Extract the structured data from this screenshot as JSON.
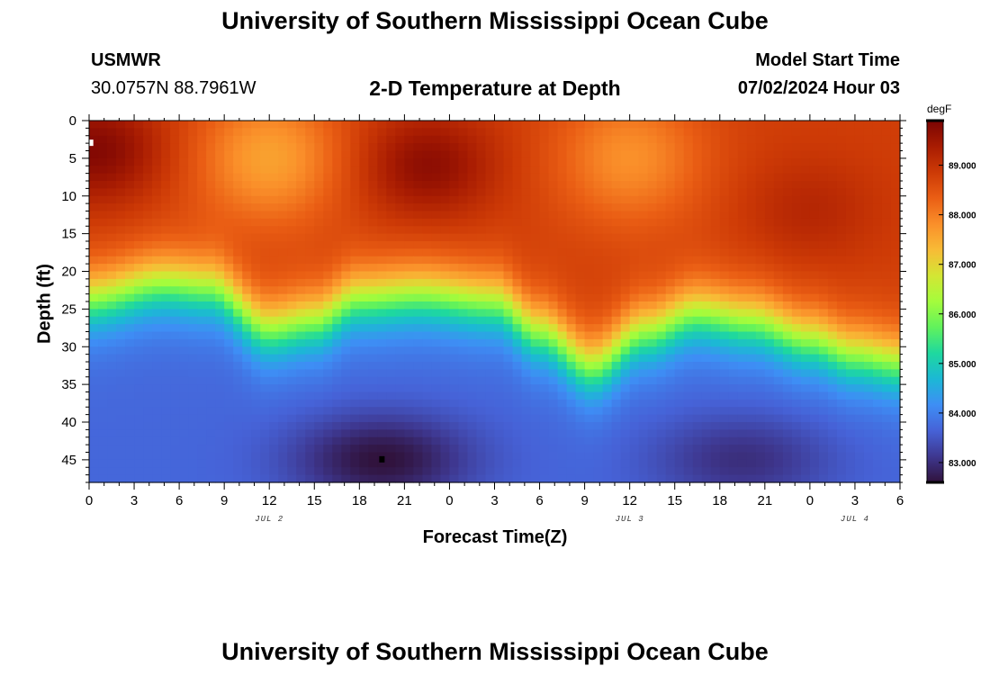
{
  "header": {
    "title_top": "University of Southern Mississippi Ocean Cube",
    "station": "USMWR",
    "coords": "30.0757N  88.7961W",
    "subtitle": "2-D Temperature at Depth",
    "model_start_label": "Model Start Time",
    "model_start_value": "07/02/2024 Hour 03",
    "title_bottom": "University of Southern Mississippi Ocean Cube"
  },
  "chart_data": {
    "type": "heatmap",
    "title": "2-D Temperature at Depth",
    "xlabel": "Forecast Time(Z)",
    "ylabel": "Depth (ft)",
    "x_range_hours": [
      0,
      54
    ],
    "y_range_ft": [
      0,
      48
    ],
    "x_tick_labels": [
      "0",
      "3",
      "6",
      "9",
      "12",
      "15",
      "18",
      "21",
      "0",
      "3",
      "6",
      "9",
      "12",
      "15",
      "18",
      "21",
      "0",
      "3",
      "6"
    ],
    "y_tick_labels": [
      "0",
      "5",
      "10",
      "15",
      "20",
      "25",
      "30",
      "35",
      "40",
      "45"
    ],
    "date_labels": [
      {
        "label": "JUL 2",
        "hour": 12
      },
      {
        "label": "JUL 3",
        "hour": 36
      },
      {
        "label": "JUL 4",
        "hour": 51
      }
    ],
    "colorbar": {
      "units": "degF",
      "min": 82.6,
      "max": 89.9,
      "ticks": [
        "83.000",
        "84.000",
        "85.000",
        "86.000",
        "87.000",
        "88.000",
        "89.000"
      ]
    },
    "thermocline_depth_ft": [
      {
        "hour": 0,
        "depth": 23.5
      },
      {
        "hour": 5,
        "depth": 21.5
      },
      {
        "hour": 8,
        "depth": 22
      },
      {
        "hour": 12,
        "depth": 27.5
      },
      {
        "hour": 15,
        "depth": 26.5
      },
      {
        "hour": 18,
        "depth": 23.5
      },
      {
        "hour": 22,
        "depth": 23
      },
      {
        "hour": 27,
        "depth": 24
      },
      {
        "hour": 30,
        "depth": 28
      },
      {
        "hour": 33.5,
        "depth": 32.5
      },
      {
        "hour": 37,
        "depth": 28
      },
      {
        "hour": 40.5,
        "depth": 25.5
      },
      {
        "hour": 44,
        "depth": 26.5
      },
      {
        "hour": 48,
        "depth": 29
      },
      {
        "hour": 51,
        "depth": 31
      },
      {
        "hour": 54,
        "depth": 32
      }
    ],
    "warm_spots": [
      {
        "hour": 0.5,
        "depth": 4,
        "value": 89.8
      },
      {
        "hour": 22.5,
        "depth": 6,
        "value": 89.7
      },
      {
        "hour": 48,
        "depth": 12,
        "value": 89.2
      }
    ],
    "cool_surface_spots": [
      {
        "hour": 12,
        "depth": 5,
        "value": 87.6
      },
      {
        "hour": 36,
        "depth": 5,
        "value": 87.8
      }
    ],
    "cold_spots": [
      {
        "hour": 19.5,
        "depth": 45,
        "value": 82.6
      },
      {
        "hour": 43.5,
        "depth": 45,
        "value": 83.0
      }
    ],
    "markers": [
      {
        "name": "white-marker",
        "hour": 0.1,
        "depth": 3,
        "color": "#ffffff"
      },
      {
        "name": "black-marker",
        "hour": 19.5,
        "depth": 45,
        "color": "#000000"
      }
    ]
  },
  "colors": {
    "colormap": [
      "#30123b",
      "#3e378f",
      "#4662d7",
      "#3e8ef5",
      "#1cb8d5",
      "#1ed89f",
      "#61f25c",
      "#a4fc3c",
      "#d3e634",
      "#f8bb36",
      "#fa8f2a",
      "#ea5e14",
      "#cd3a06",
      "#a81c02",
      "#7a0403"
    ]
  }
}
